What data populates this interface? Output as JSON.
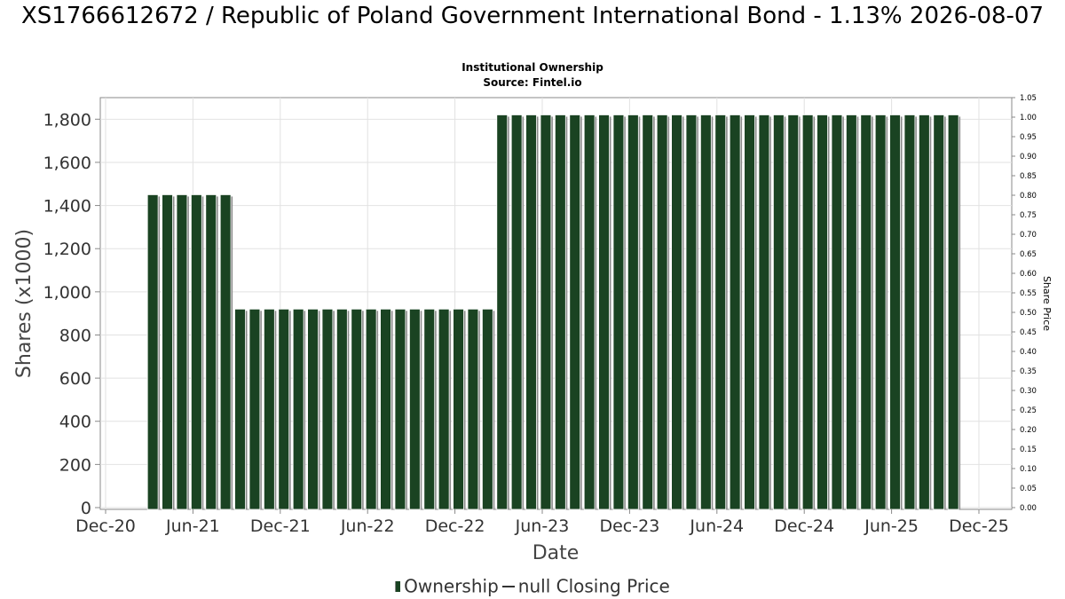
{
  "header": {
    "title": "XS1766612672 / Republic of Poland Government International Bond - 1.13% 2026-08-07",
    "subtitle": "Institutional Ownership",
    "source": "Source: Fintel.io"
  },
  "legend": {
    "items": [
      {
        "label": "Ownership",
        "kind": "bar",
        "color": "#1a4322"
      },
      {
        "label": "null Closing Price",
        "kind": "line",
        "color": "#333333"
      }
    ]
  },
  "chart_data": {
    "type": "bar",
    "title": "XS1766612672 / Republic of Poland Government International Bond - 1.13% 2026-08-07",
    "subtitle": "Institutional Ownership",
    "xlabel": "Date",
    "ylabel": "Shares (x1000)",
    "y2label": "Share Price",
    "ylim": [
      0,
      1900
    ],
    "y2lim": [
      0,
      1.05
    ],
    "x_range": [
      "2020-12-01",
      "2025-12-01"
    ],
    "yticks": [
      "0",
      "200",
      "400",
      "600",
      "800",
      "1,000",
      "1,200",
      "1,400",
      "1,600",
      "1,800"
    ],
    "y2ticks": [
      "0.00",
      "0.05",
      "0.10",
      "0.15",
      "0.20",
      "0.25",
      "0.30",
      "0.35",
      "0.40",
      "0.45",
      "0.50",
      "0.55",
      "0.60",
      "0.65",
      "0.70",
      "0.75",
      "0.80",
      "0.85",
      "0.90",
      "0.95",
      "1.00",
      "1.05"
    ],
    "xticks": [
      "Dec-20",
      "Jun-21",
      "Dec-21",
      "Jun-22",
      "Dec-22",
      "Jun-23",
      "Dec-23",
      "Jun-24",
      "Dec-24",
      "Jun-25",
      "Dec-25"
    ],
    "grid": true,
    "legend_position": "bottom",
    "bar_color": "#1a4322",
    "series": [
      {
        "name": "Ownership",
        "segments": [
          {
            "start": "2021-03",
            "end": "2021-08",
            "value": 1450
          },
          {
            "start": "2021-09",
            "end": "2023-02",
            "value": 920
          },
          {
            "start": "2023-03",
            "end": "2025-10",
            "value": 1820
          }
        ]
      }
    ]
  }
}
